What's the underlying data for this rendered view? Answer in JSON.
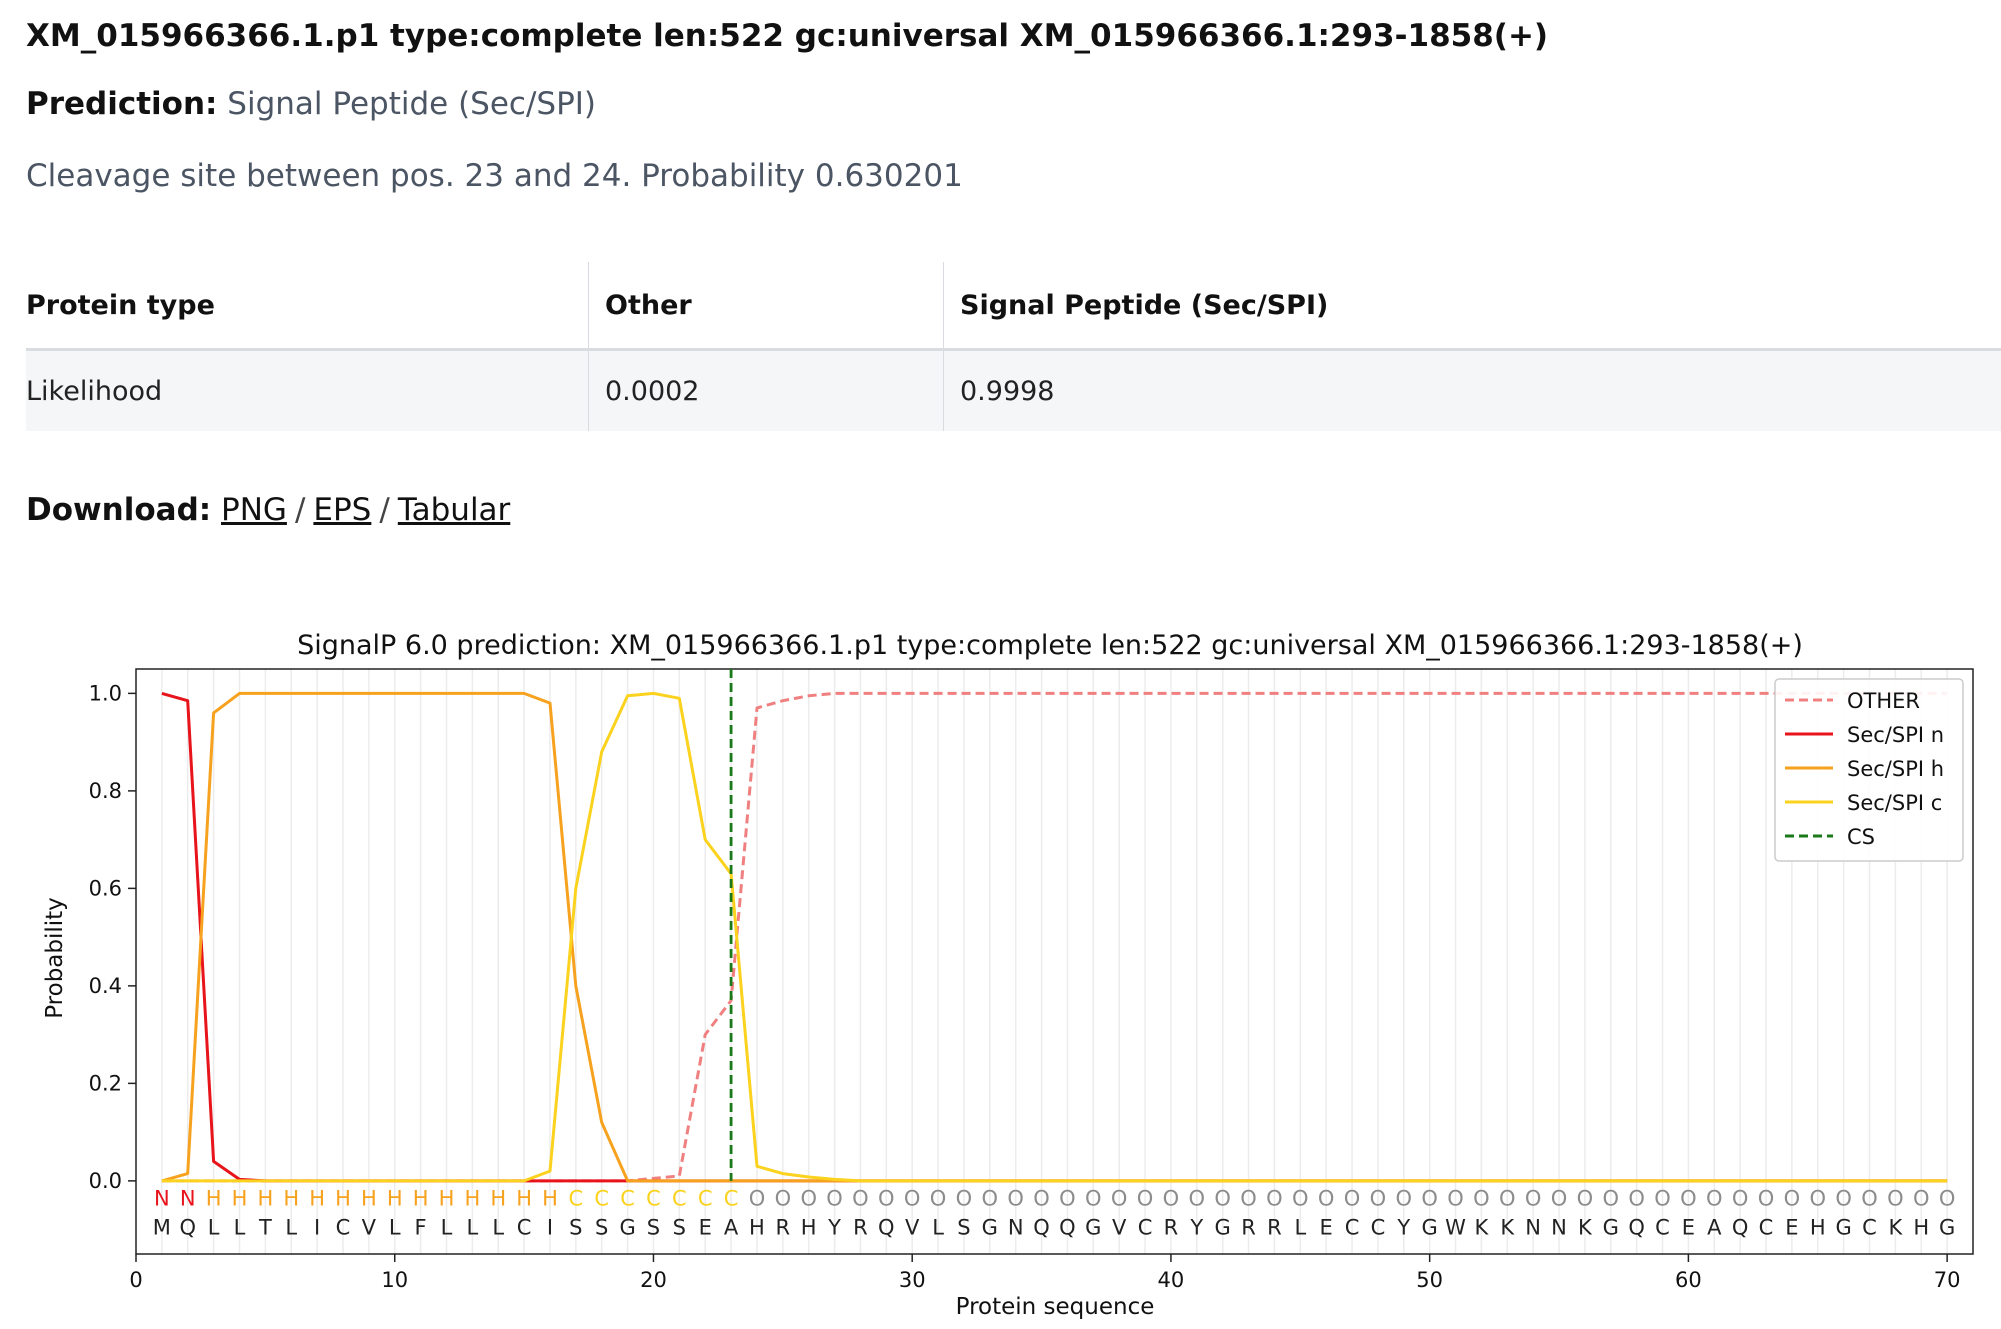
{
  "header": {
    "record_title": "XM_015966366.1.p1 type:complete len:522 gc:universal XM_015966366.1:293-1858(+)",
    "prediction_label": "Prediction:",
    "prediction_value": "Signal Peptide (Sec/SPI)",
    "cleavage_text": "Cleavage site between pos. 23 and 24. Probability 0.630201"
  },
  "table": {
    "headers": [
      "Protein type",
      "Other",
      "Signal Peptide (Sec/SPI)"
    ],
    "row": [
      "Likelihood",
      "0.0002",
      "0.9998"
    ]
  },
  "download": {
    "label": "Download:",
    "links": [
      "PNG",
      "EPS",
      "Tabular"
    ],
    "separator": "/"
  },
  "chart_data": {
    "type": "line",
    "title": "SignalP 6.0 prediction: XM_015966366.1.p1 type:complete len:522 gc:universal XM_015966366.1:293-1858(+)",
    "xlabel": "Protein sequence",
    "ylabel": "Probability",
    "xlim": [
      0,
      71
    ],
    "ylim": [
      -0.15,
      1.05
    ],
    "xticks": [
      0,
      10,
      20,
      30,
      40,
      50,
      60,
      70
    ],
    "yticks": [
      "0.0",
      "0.2",
      "0.4",
      "0.6",
      "0.8",
      "1.0"
    ],
    "grid": "vertical lines at each residue",
    "legend_position": "top-right",
    "sequence": "MQLLTLICVLFLLLCISSGSSEAHRHYRQVLSGNQQGVCRYGRRLECCYGWKKNNKGQCEAQCEHGCKHG",
    "region_labels": "NNHHHHHHHHHHHHHHCCCCCCCOOOOOOOOOOOOOOOOOOOOOOOOOOOOOOOOOOOOOOOOOOOOOOO",
    "region_colors": {
      "N": "#e8141b",
      "H": "#f7a21e",
      "C": "#fbd21e",
      "O": "#8c8c8c"
    },
    "cleavage_site": 23,
    "series": [
      {
        "name": "OTHER",
        "color": "#f08080",
        "dash": "dashed",
        "points": [
          [
            1,
            0.0
          ],
          [
            2,
            0.0
          ],
          [
            19,
            0.0
          ],
          [
            20,
            0.005
          ],
          [
            21,
            0.01
          ],
          [
            22,
            0.3
          ],
          [
            23,
            0.37
          ],
          [
            24,
            0.97
          ],
          [
            25,
            0.985
          ],
          [
            26,
            0.995
          ],
          [
            27,
            1.0
          ],
          [
            70,
            1.0
          ]
        ]
      },
      {
        "name": "Sec/SPI n",
        "color": "#e8141b",
        "dash": "solid",
        "points": [
          [
            1,
            1.0
          ],
          [
            2,
            0.985
          ],
          [
            3,
            0.04
          ],
          [
            4,
            0.003
          ],
          [
            5,
            0.0
          ],
          [
            70,
            0.0
          ]
        ]
      },
      {
        "name": "Sec/SPI h",
        "color": "#f7a21e",
        "dash": "solid",
        "points": [
          [
            1,
            0.0
          ],
          [
            2,
            0.015
          ],
          [
            3,
            0.96
          ],
          [
            4,
            1.0
          ],
          [
            15,
            1.0
          ],
          [
            16,
            0.98
          ],
          [
            17,
            0.4
          ],
          [
            18,
            0.12
          ],
          [
            19,
            0.0
          ],
          [
            70,
            0.0
          ]
        ]
      },
      {
        "name": "Sec/SPI c",
        "color": "#fbd21e",
        "dash": "solid",
        "points": [
          [
            1,
            0.0
          ],
          [
            15,
            0.0
          ],
          [
            16,
            0.02
          ],
          [
            17,
            0.6
          ],
          [
            18,
            0.88
          ],
          [
            19,
            0.995
          ],
          [
            20,
            1.0
          ],
          [
            21,
            0.99
          ],
          [
            22,
            0.7
          ],
          [
            23,
            0.63
          ],
          [
            24,
            0.03
          ],
          [
            25,
            0.015
          ],
          [
            26,
            0.008
          ],
          [
            27,
            0.003
          ],
          [
            28,
            0.0
          ],
          [
            70,
            0.0
          ]
        ]
      },
      {
        "name": "CS",
        "color": "#1a7a1a",
        "dash": "dashed",
        "vertical_at": 23
      }
    ]
  }
}
